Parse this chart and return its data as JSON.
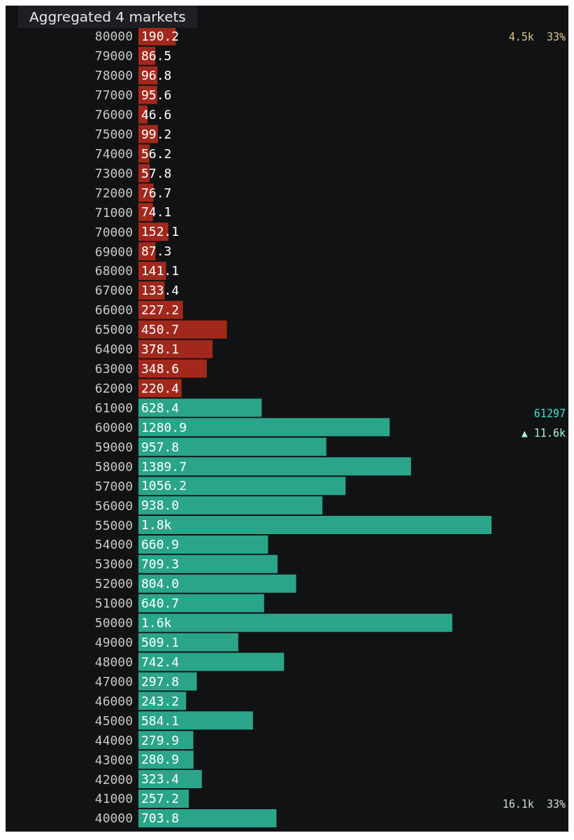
{
  "chart_data": {
    "type": "bar",
    "orientation": "horizontal",
    "title": "Aggregated 4 markets",
    "categories": [
      "80000",
      "79000",
      "78000",
      "77000",
      "76000",
      "75000",
      "74000",
      "73000",
      "72000",
      "71000",
      "70000",
      "69000",
      "68000",
      "67000",
      "66000",
      "65000",
      "64000",
      "63000",
      "62000",
      "61000",
      "60000",
      "59000",
      "58000",
      "57000",
      "56000",
      "55000",
      "54000",
      "53000",
      "52000",
      "51000",
      "50000",
      "49000",
      "48000",
      "47000",
      "46000",
      "45000",
      "44000",
      "43000",
      "42000",
      "41000",
      "40000"
    ],
    "values": [
      190.2,
      86.5,
      96.8,
      95.6,
      46.6,
      99.2,
      56.2,
      57.8,
      76.7,
      74.1,
      152.1,
      87.3,
      141.1,
      133.4,
      227.2,
      450.7,
      378.1,
      348.6,
      220.4,
      628.4,
      1280.9,
      957.8,
      1389.7,
      1056.2,
      938.0,
      1800,
      660.9,
      709.3,
      804.0,
      640.7,
      1600,
      509.1,
      742.4,
      297.8,
      243.2,
      584.1,
      279.9,
      280.9,
      323.4,
      257.2,
      703.8
    ],
    "value_labels": [
      "190.2",
      "86.5",
      "96.8",
      "95.6",
      "46.6",
      "99.2",
      "56.2",
      "57.8",
      "76.7",
      "74.1",
      "152.1",
      "87.3",
      "141.1",
      "133.4",
      "227.2",
      "450.7",
      "378.1",
      "348.6",
      "220.4",
      "628.4",
      "1280.9",
      "957.8",
      "1389.7",
      "1056.2",
      "938.0",
      "1.8k",
      "660.9",
      "709.3",
      "804.0",
      "640.7",
      "1.6k",
      "509.1",
      "742.4",
      "297.8",
      "243.2",
      "584.1",
      "279.9",
      "280.9",
      "323.4",
      "257.2",
      "703.8"
    ],
    "colors": [
      "#a3281c",
      "#a3281c",
      "#a3281c",
      "#a3281c",
      "#a3281c",
      "#a3281c",
      "#a3281c",
      "#a3281c",
      "#a3281c",
      "#a3281c",
      "#a3281c",
      "#a3281c",
      "#a3281c",
      "#a3281c",
      "#a3281c",
      "#a3281c",
      "#a3281c",
      "#a3281c",
      "#a3281c",
      "#2aa58a",
      "#2aa58a",
      "#2aa58a",
      "#2aa58a",
      "#2aa58a",
      "#2aa58a",
      "#2aa58a",
      "#2aa58a",
      "#2aa58a",
      "#2aa58a",
      "#2aa58a",
      "#2aa58a",
      "#2aa58a",
      "#2aa58a",
      "#2aa58a",
      "#2aa58a",
      "#2aa58a",
      "#2aa58a",
      "#2aa58a",
      "#2aa58a",
      "#2aa58a",
      "#2aa58a"
    ],
    "annotations": [
      "4.5k  33%",
      "61297",
      "▲ 11.6k",
      "16.1k  33%"
    ]
  }
}
